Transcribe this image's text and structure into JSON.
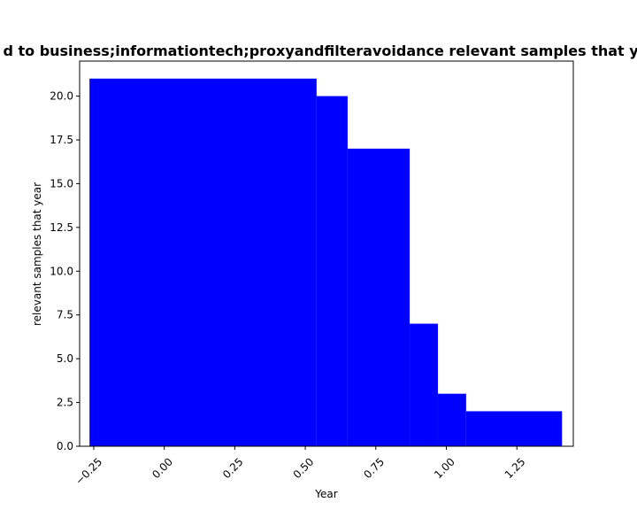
{
  "chart_data": {
    "type": "bar",
    "title": "d to business;informationtech;proxyandfilteravoidance relevant samples that ye",
    "xlabel": "Year",
    "ylabel": "relevant samples that year",
    "xlim": [
      -0.3,
      1.45
    ],
    "ylim": [
      0,
      22
    ],
    "x_ticks": [
      -0.25,
      0.0,
      0.25,
      0.5,
      0.75,
      1.0,
      1.25
    ],
    "x_tick_labels": [
      "−0.25",
      "0.00",
      "0.25",
      "0.50",
      "0.75",
      "1.00",
      "1.25"
    ],
    "y_ticks": [
      0.0,
      2.5,
      5.0,
      7.5,
      10.0,
      12.5,
      15.0,
      17.5,
      20.0
    ],
    "y_tick_labels": [
      "0.0",
      "2.5",
      "5.0",
      "7.5",
      "10.0",
      "12.5",
      "15.0",
      "17.5",
      "20.0"
    ],
    "bar_color": "#0000ff",
    "bars": [
      {
        "x0": -0.265,
        "x1": 0.54,
        "value": 21
      },
      {
        "x0": 0.54,
        "x1": 0.65,
        "value": 20
      },
      {
        "x0": 0.65,
        "x1": 0.87,
        "value": 17
      },
      {
        "x0": 0.87,
        "x1": 0.97,
        "value": 7
      },
      {
        "x0": 0.97,
        "x1": 1.07,
        "value": 3
      },
      {
        "x0": 1.07,
        "x1": 1.41,
        "value": 2
      }
    ],
    "grid": false,
    "legend": "none"
  }
}
